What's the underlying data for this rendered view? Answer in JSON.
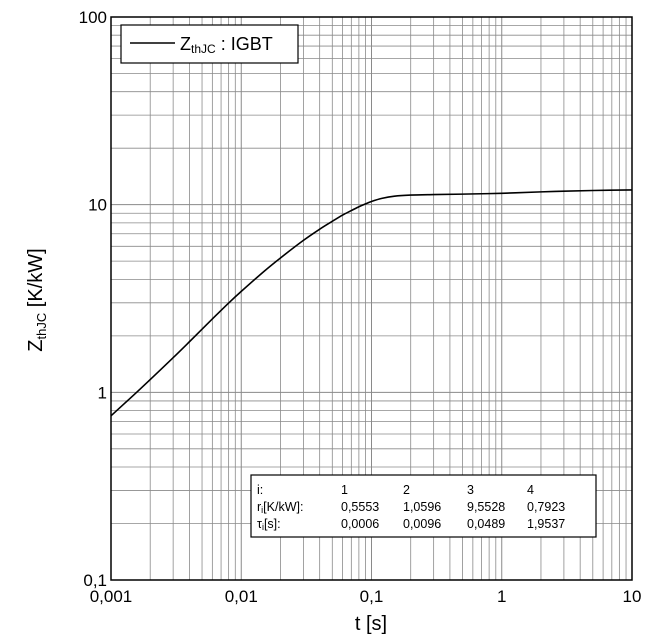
{
  "chart_data": {
    "type": "line",
    "x_scale": "log",
    "y_scale": "log",
    "xlim": [
      0.001,
      10
    ],
    "ylim": [
      0.1,
      100
    ],
    "grid": true,
    "x_tick_labels": [
      "0,001",
      "0,01",
      "0,1",
      "1",
      "10"
    ],
    "y_tick_labels": [
      "0,1",
      "1",
      "10",
      "100"
    ],
    "xlabel": "t [s]",
    "ylabel": {
      "main": "Z",
      "sub": "thJC",
      "unit": " [K/kW]"
    },
    "legend": {
      "position": "top-left",
      "label_main": "Z",
      "label_sub": "thJC",
      "label_rest": " : IGBT"
    },
    "series": [
      {
        "name": "ZthJC : IGBT",
        "color": "#000000",
        "x": [
          0.001,
          0.0015,
          0.002,
          0.003,
          0.004,
          0.005,
          0.006,
          0.008,
          0.01,
          0.015,
          0.02,
          0.03,
          0.04,
          0.05,
          0.06,
          0.07,
          0.08,
          0.09,
          0.1,
          0.12,
          0.15,
          0.2,
          0.3,
          0.5,
          1,
          2,
          3,
          5,
          10
        ],
        "y": [
          0.75,
          0.97,
          1.17,
          1.53,
          1.86,
          2.17,
          2.46,
          2.99,
          3.45,
          4.42,
          5.2,
          6.45,
          7.4,
          8.15,
          8.8,
          9.3,
          9.75,
          10.1,
          10.4,
          10.8,
          11.1,
          11.25,
          11.32,
          11.38,
          11.5,
          11.7,
          11.8,
          11.9,
          11.98
        ]
      }
    ],
    "table": {
      "row1_label": "i:",
      "row2_label_main": "r",
      "row2_label_sub": "i",
      "row2_label_rest": "[K/kW]:",
      "row3_label_main": "τ",
      "row3_label_sub": "i",
      "row3_label_rest": "[s]:",
      "index": [
        "1",
        "2",
        "3",
        "4"
      ],
      "r": [
        "0,5553",
        "1,0596",
        "9,5528",
        "0,7923"
      ],
      "tau": [
        "0,0006",
        "0,0096",
        "0,0489",
        "1,9537"
      ]
    }
  }
}
